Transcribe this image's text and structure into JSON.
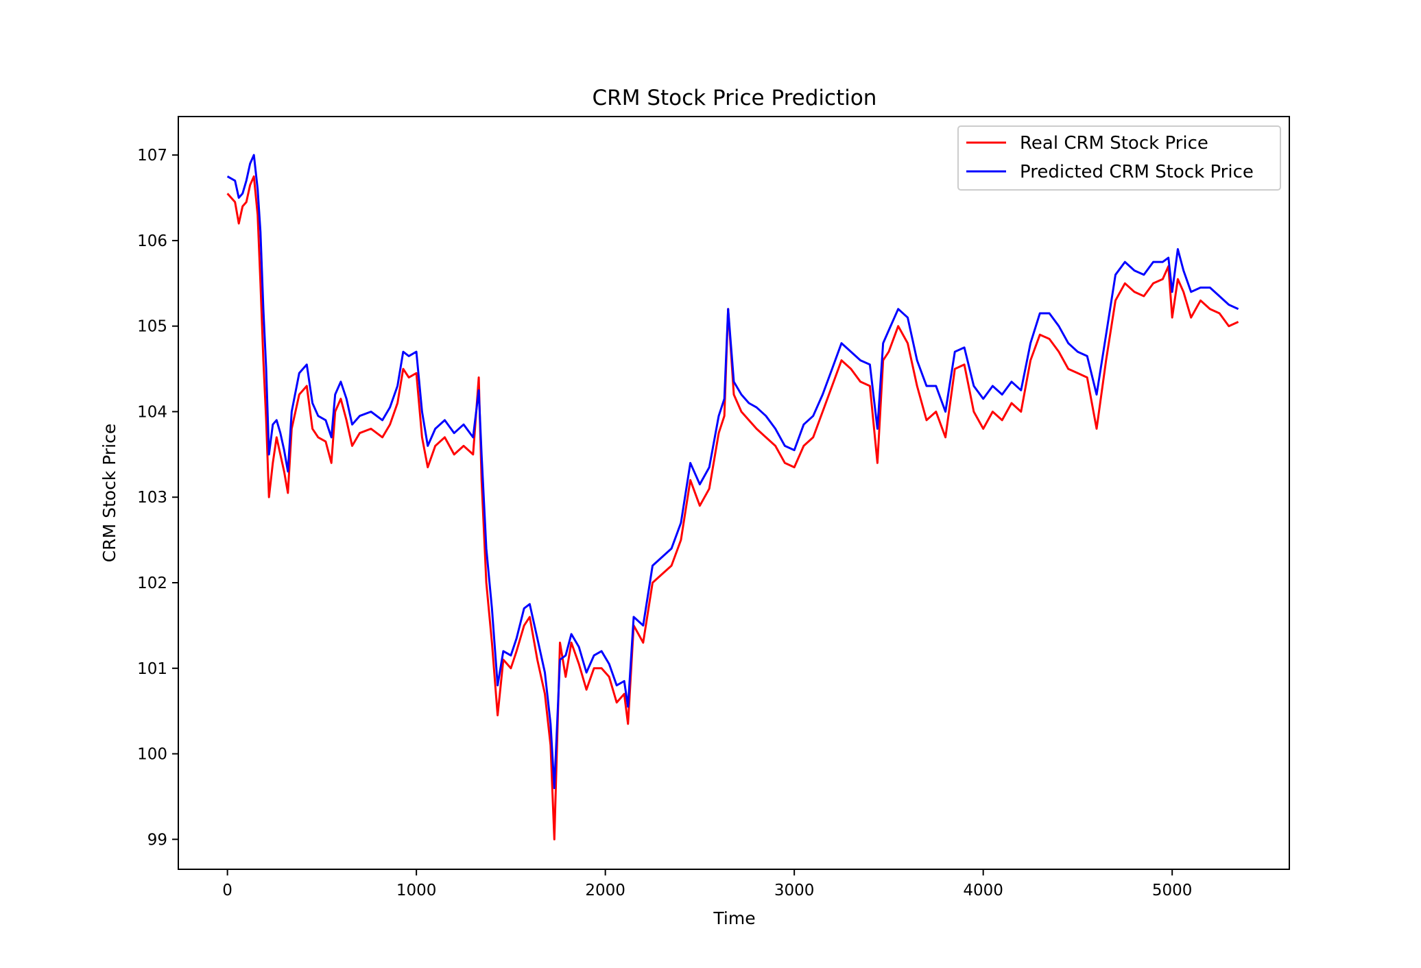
{
  "chart_data": {
    "type": "line",
    "title": "CRM Stock Price Prediction",
    "xlabel": "Time",
    "ylabel": "CRM Stock Price",
    "xlim": [
      -260,
      5620
    ],
    "ylim": [
      98.65,
      107.45
    ],
    "x_ticks": [
      0,
      1000,
      2000,
      3000,
      4000,
      5000
    ],
    "x_tick_labels": [
      "0",
      "1000",
      "2000",
      "3000",
      "4000",
      "5000"
    ],
    "y_ticks": [
      99,
      100,
      101,
      102,
      103,
      104,
      105,
      106,
      107
    ],
    "y_tick_labels": [
      "99",
      "100",
      "101",
      "102",
      "103",
      "104",
      "105",
      "106",
      "107"
    ],
    "grid": false,
    "legend_position": "top-right",
    "series": [
      {
        "name": "Real CRM Stock Price",
        "color": "#ff0000",
        "points": [
          [
            0,
            106.55
          ],
          [
            40,
            106.45
          ],
          [
            60,
            106.2
          ],
          [
            80,
            106.4
          ],
          [
            100,
            106.45
          ],
          [
            120,
            106.65
          ],
          [
            140,
            106.75
          ],
          [
            160,
            106.3
          ],
          [
            175,
            105.5
          ],
          [
            190,
            104.6
          ],
          [
            205,
            103.9
          ],
          [
            220,
            103.0
          ],
          [
            240,
            103.4
          ],
          [
            260,
            103.7
          ],
          [
            280,
            103.5
          ],
          [
            300,
            103.3
          ],
          [
            320,
            103.05
          ],
          [
            340,
            103.8
          ],
          [
            380,
            104.2
          ],
          [
            420,
            104.3
          ],
          [
            450,
            103.8
          ],
          [
            480,
            103.7
          ],
          [
            520,
            103.65
          ],
          [
            550,
            103.4
          ],
          [
            570,
            104.0
          ],
          [
            600,
            104.15
          ],
          [
            630,
            103.9
          ],
          [
            660,
            103.6
          ],
          [
            700,
            103.75
          ],
          [
            760,
            103.8
          ],
          [
            820,
            103.7
          ],
          [
            860,
            103.85
          ],
          [
            900,
            104.1
          ],
          [
            930,
            104.5
          ],
          [
            960,
            104.4
          ],
          [
            1000,
            104.45
          ],
          [
            1030,
            103.7
          ],
          [
            1060,
            103.35
          ],
          [
            1100,
            103.6
          ],
          [
            1150,
            103.7
          ],
          [
            1200,
            103.5
          ],
          [
            1250,
            103.6
          ],
          [
            1300,
            103.5
          ],
          [
            1330,
            104.4
          ],
          [
            1345,
            103.2
          ],
          [
            1370,
            102.0
          ],
          [
            1400,
            101.3
          ],
          [
            1430,
            100.45
          ],
          [
            1460,
            101.1
          ],
          [
            1500,
            101.0
          ],
          [
            1530,
            101.2
          ],
          [
            1570,
            101.5
          ],
          [
            1600,
            101.6
          ],
          [
            1640,
            101.1
          ],
          [
            1680,
            100.7
          ],
          [
            1710,
            100.1
          ],
          [
            1730,
            99.0
          ],
          [
            1760,
            101.3
          ],
          [
            1790,
            100.9
          ],
          [
            1820,
            101.3
          ],
          [
            1860,
            101.05
          ],
          [
            1900,
            100.75
          ],
          [
            1940,
            101.0
          ],
          [
            1980,
            101.0
          ],
          [
            2020,
            100.9
          ],
          [
            2060,
            100.6
          ],
          [
            2100,
            100.7
          ],
          [
            2120,
            100.35
          ],
          [
            2150,
            101.5
          ],
          [
            2200,
            101.3
          ],
          [
            2250,
            102.0
          ],
          [
            2300,
            102.1
          ],
          [
            2350,
            102.2
          ],
          [
            2400,
            102.5
          ],
          [
            2450,
            103.2
          ],
          [
            2500,
            102.9
          ],
          [
            2550,
            103.1
          ],
          [
            2600,
            103.75
          ],
          [
            2630,
            103.95
          ],
          [
            2650,
            105.2
          ],
          [
            2680,
            104.2
          ],
          [
            2720,
            104.0
          ],
          [
            2760,
            103.9
          ],
          [
            2800,
            103.8
          ],
          [
            2850,
            103.7
          ],
          [
            2900,
            103.6
          ],
          [
            2950,
            103.4
          ],
          [
            3000,
            103.35
          ],
          [
            3050,
            103.6
          ],
          [
            3100,
            103.7
          ],
          [
            3150,
            104.0
          ],
          [
            3200,
            104.3
          ],
          [
            3250,
            104.6
          ],
          [
            3300,
            104.5
          ],
          [
            3350,
            104.35
          ],
          [
            3400,
            104.3
          ],
          [
            3440,
            103.4
          ],
          [
            3470,
            104.6
          ],
          [
            3500,
            104.7
          ],
          [
            3550,
            105.0
          ],
          [
            3600,
            104.8
          ],
          [
            3650,
            104.3
          ],
          [
            3700,
            103.9
          ],
          [
            3750,
            104.0
          ],
          [
            3800,
            103.7
          ],
          [
            3850,
            104.5
          ],
          [
            3900,
            104.55
          ],
          [
            3950,
            104.0
          ],
          [
            4000,
            103.8
          ],
          [
            4050,
            104.0
          ],
          [
            4100,
            103.9
          ],
          [
            4150,
            104.1
          ],
          [
            4200,
            104.0
          ],
          [
            4250,
            104.6
          ],
          [
            4300,
            104.9
          ],
          [
            4350,
            104.85
          ],
          [
            4400,
            104.7
          ],
          [
            4450,
            104.5
          ],
          [
            4500,
            104.45
          ],
          [
            4550,
            104.4
          ],
          [
            4600,
            103.8
          ],
          [
            4650,
            104.6
          ],
          [
            4700,
            105.3
          ],
          [
            4750,
            105.5
          ],
          [
            4800,
            105.4
          ],
          [
            4850,
            105.35
          ],
          [
            4900,
            105.5
          ],
          [
            4950,
            105.55
          ],
          [
            4980,
            105.7
          ],
          [
            5000,
            105.1
          ],
          [
            5030,
            105.55
          ],
          [
            5060,
            105.4
          ],
          [
            5100,
            105.1
          ],
          [
            5150,
            105.3
          ],
          [
            5200,
            105.2
          ],
          [
            5250,
            105.15
          ],
          [
            5300,
            105.0
          ],
          [
            5350,
            105.05
          ]
        ]
      },
      {
        "name": "Predicted CRM Stock Price",
        "color": "#0000ff",
        "points": [
          [
            0,
            106.75
          ],
          [
            40,
            106.7
          ],
          [
            60,
            106.5
          ],
          [
            80,
            106.55
          ],
          [
            100,
            106.7
          ],
          [
            120,
            106.9
          ],
          [
            140,
            107.0
          ],
          [
            160,
            106.6
          ],
          [
            175,
            106.1
          ],
          [
            190,
            105.2
          ],
          [
            205,
            104.5
          ],
          [
            220,
            103.5
          ],
          [
            240,
            103.85
          ],
          [
            260,
            103.9
          ],
          [
            280,
            103.75
          ],
          [
            300,
            103.55
          ],
          [
            320,
            103.3
          ],
          [
            340,
            104.0
          ],
          [
            380,
            104.45
          ],
          [
            420,
            104.55
          ],
          [
            450,
            104.1
          ],
          [
            480,
            103.95
          ],
          [
            520,
            103.9
          ],
          [
            550,
            103.7
          ],
          [
            570,
            104.2
          ],
          [
            600,
            104.35
          ],
          [
            630,
            104.15
          ],
          [
            660,
            103.85
          ],
          [
            700,
            103.95
          ],
          [
            760,
            104.0
          ],
          [
            820,
            103.9
          ],
          [
            860,
            104.05
          ],
          [
            900,
            104.3
          ],
          [
            930,
            104.7
          ],
          [
            960,
            104.65
          ],
          [
            1000,
            104.7
          ],
          [
            1030,
            104.0
          ],
          [
            1060,
            103.6
          ],
          [
            1100,
            103.8
          ],
          [
            1150,
            103.9
          ],
          [
            1200,
            103.75
          ],
          [
            1250,
            103.85
          ],
          [
            1300,
            103.7
          ],
          [
            1330,
            104.25
          ],
          [
            1345,
            103.5
          ],
          [
            1370,
            102.4
          ],
          [
            1400,
            101.7
          ],
          [
            1430,
            100.8
          ],
          [
            1460,
            101.2
          ],
          [
            1500,
            101.15
          ],
          [
            1530,
            101.35
          ],
          [
            1570,
            101.7
          ],
          [
            1600,
            101.75
          ],
          [
            1640,
            101.35
          ],
          [
            1680,
            100.95
          ],
          [
            1710,
            100.35
          ],
          [
            1730,
            99.6
          ],
          [
            1760,
            101.1
          ],
          [
            1790,
            101.15
          ],
          [
            1820,
            101.4
          ],
          [
            1860,
            101.25
          ],
          [
            1900,
            100.95
          ],
          [
            1940,
            101.15
          ],
          [
            1980,
            101.2
          ],
          [
            2020,
            101.05
          ],
          [
            2060,
            100.8
          ],
          [
            2100,
            100.85
          ],
          [
            2120,
            100.55
          ],
          [
            2150,
            101.6
          ],
          [
            2200,
            101.5
          ],
          [
            2250,
            102.2
          ],
          [
            2300,
            102.3
          ],
          [
            2350,
            102.4
          ],
          [
            2400,
            102.7
          ],
          [
            2450,
            103.4
          ],
          [
            2500,
            103.15
          ],
          [
            2550,
            103.35
          ],
          [
            2600,
            103.95
          ],
          [
            2630,
            104.15
          ],
          [
            2650,
            105.2
          ],
          [
            2680,
            104.35
          ],
          [
            2720,
            104.2
          ],
          [
            2760,
            104.1
          ],
          [
            2800,
            104.05
          ],
          [
            2850,
            103.95
          ],
          [
            2900,
            103.8
          ],
          [
            2950,
            103.6
          ],
          [
            3000,
            103.55
          ],
          [
            3050,
            103.85
          ],
          [
            3100,
            103.95
          ],
          [
            3150,
            104.2
          ],
          [
            3200,
            104.5
          ],
          [
            3250,
            104.8
          ],
          [
            3300,
            104.7
          ],
          [
            3350,
            104.6
          ],
          [
            3400,
            104.55
          ],
          [
            3440,
            103.8
          ],
          [
            3470,
            104.8
          ],
          [
            3500,
            104.95
          ],
          [
            3550,
            105.2
          ],
          [
            3600,
            105.1
          ],
          [
            3650,
            104.6
          ],
          [
            3700,
            104.3
          ],
          [
            3750,
            104.3
          ],
          [
            3800,
            104.0
          ],
          [
            3850,
            104.7
          ],
          [
            3900,
            104.75
          ],
          [
            3950,
            104.3
          ],
          [
            4000,
            104.15
          ],
          [
            4050,
            104.3
          ],
          [
            4100,
            104.2
          ],
          [
            4150,
            104.35
          ],
          [
            4200,
            104.25
          ],
          [
            4250,
            104.8
          ],
          [
            4300,
            105.15
          ],
          [
            4350,
            105.15
          ],
          [
            4400,
            105.0
          ],
          [
            4450,
            104.8
          ],
          [
            4500,
            104.7
          ],
          [
            4550,
            104.65
          ],
          [
            4600,
            104.2
          ],
          [
            4650,
            104.9
          ],
          [
            4700,
            105.6
          ],
          [
            4750,
            105.75
          ],
          [
            4800,
            105.65
          ],
          [
            4850,
            105.6
          ],
          [
            4900,
            105.75
          ],
          [
            4950,
            105.75
          ],
          [
            4980,
            105.8
          ],
          [
            5000,
            105.4
          ],
          [
            5030,
            105.9
          ],
          [
            5060,
            105.65
          ],
          [
            5100,
            105.4
          ],
          [
            5150,
            105.45
          ],
          [
            5200,
            105.45
          ],
          [
            5250,
            105.35
          ],
          [
            5300,
            105.25
          ],
          [
            5350,
            105.2
          ]
        ]
      }
    ]
  }
}
